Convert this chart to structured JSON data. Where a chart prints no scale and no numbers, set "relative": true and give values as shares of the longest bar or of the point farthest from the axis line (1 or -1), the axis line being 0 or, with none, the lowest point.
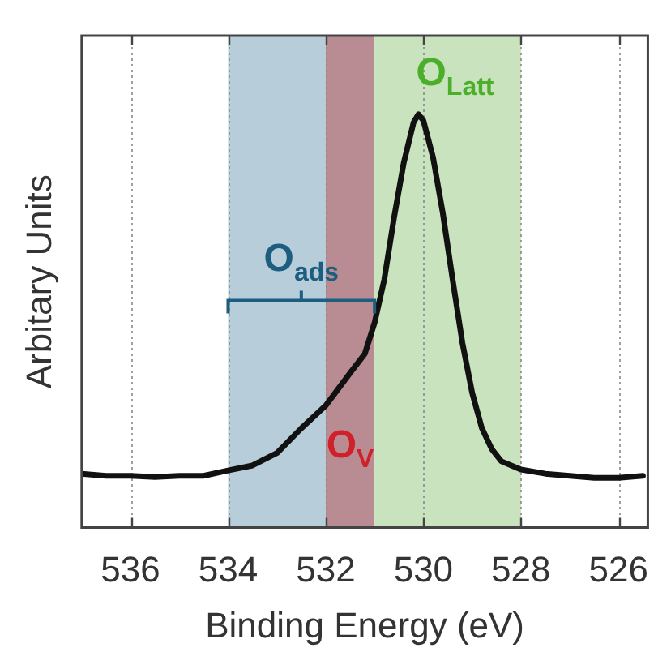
{
  "chart_data": {
    "type": "line",
    "xlabel": "Binding Energy (eV)",
    "ylabel": "Arbitary Units",
    "relative": true,
    "xlim": [
      537,
      525.4
    ],
    "xticks": [
      536,
      534,
      532,
      530,
      528,
      526
    ],
    "grid": "x",
    "legend": false,
    "marker": "none",
    "line_style": "solid",
    "x": [
      537.0,
      536.5,
      536.0,
      535.5,
      535.0,
      534.5,
      534.0,
      533.5,
      533.0,
      532.5,
      532.0,
      531.5,
      531.2,
      531.0,
      530.8,
      530.6,
      530.4,
      530.2,
      530.1,
      530.0,
      529.8,
      529.6,
      529.4,
      529.2,
      529.0,
      528.8,
      528.6,
      528.4,
      528.0,
      527.5,
      527.0,
      526.5,
      526.0,
      525.5
    ],
    "series": [
      {
        "color": "#111111",
        "values": [
          0.13,
          0.125,
          0.125,
          0.122,
          0.125,
          0.125,
          0.138,
          0.15,
          0.18,
          0.24,
          0.295,
          0.374,
          0.42,
          0.495,
          0.6,
          0.75,
          0.883,
          0.98,
          1,
          0.985,
          0.895,
          0.76,
          0.6,
          0.447,
          0.326,
          0.24,
          0.19,
          0.16,
          0.14,
          0.13,
          0.125,
          0.12,
          0.12,
          0.125
        ]
      }
    ],
    "bands": [
      {
        "axis": "x",
        "from": 534,
        "to": 532,
        "color": "#b7cdd9",
        "label": "O$_{ads}$"
      },
      {
        "axis": "x",
        "from": 532,
        "to": 531,
        "color": "#b98c93",
        "label": "O$_{V}$"
      },
      {
        "axis": "x",
        "from": 531,
        "to": 528,
        "color": "#c8e3bd",
        "label": "O$_{Latt}$"
      }
    ]
  }
}
